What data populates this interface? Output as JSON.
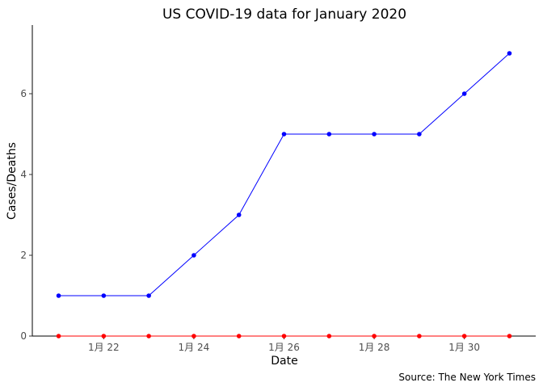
{
  "chart_data": {
    "type": "line",
    "title": "US COVID-19 data for January 2020",
    "xlabel": "Date",
    "ylabel": "Cases/Deaths",
    "caption": "Source: The New York Times",
    "x": [
      "2020-01-21",
      "2020-01-22",
      "2020-01-23",
      "2020-01-24",
      "2020-01-25",
      "2020-01-26",
      "2020-01-27",
      "2020-01-28",
      "2020-01-29",
      "2020-01-30",
      "2020-01-31"
    ],
    "series": [
      {
        "key": "cases",
        "color": "#0000ff",
        "values": [
          1,
          1,
          1,
          2,
          3,
          5,
          5,
          5,
          5,
          6,
          7
        ]
      },
      {
        "key": "deaths",
        "color": "#ff0000",
        "values": [
          0,
          0,
          0,
          0,
          0,
          0,
          0,
          0,
          0,
          0,
          0
        ]
      }
    ],
    "x_ticks": [
      {
        "date": "2020-01-22",
        "label": "1月 22"
      },
      {
        "date": "2020-01-24",
        "label": "1月 24"
      },
      {
        "date": "2020-01-26",
        "label": "1月 26"
      },
      {
        "date": "2020-01-28",
        "label": "1月 28"
      },
      {
        "date": "2020-01-30",
        "label": "1月 30"
      }
    ],
    "y_ticks": [
      0,
      2,
      4,
      6
    ],
    "ylim": [
      0,
      7.7
    ],
    "xlim": [
      "2020-01-20T10:00",
      "2020-01-31T14:00"
    ],
    "grid": false,
    "legend": "none"
  }
}
